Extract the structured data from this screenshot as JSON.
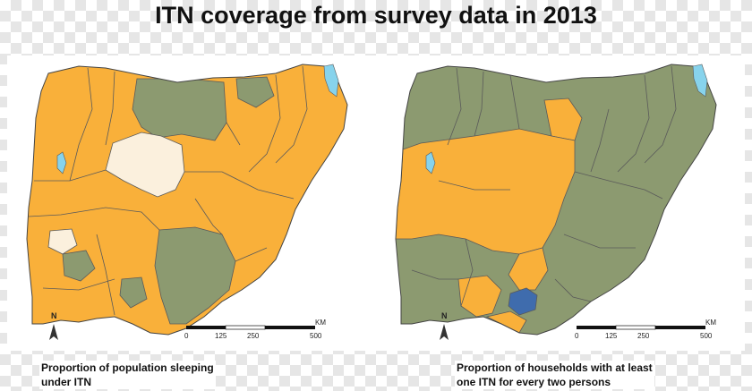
{
  "title": "ITN coverage from survey data in 2013",
  "maps": [
    {
      "caption_line1": "Proportion of population sleeping",
      "caption_line2": "under ITN",
      "north": "N",
      "scale_ticks": [
        "0",
        "125",
        "250",
        "500"
      ],
      "scale_unit": "KM"
    },
    {
      "caption_line1": "Proportion of households with at least",
      "caption_line2": "one ITN for every two persons",
      "north": "N",
      "scale_ticks": [
        "0",
        "125",
        "250",
        "500"
      ],
      "scale_unit": "KM"
    }
  ],
  "colors": {
    "orange": "#f9b03a",
    "olive": "#8c9a70",
    "cream": "#fbf0dd",
    "blue": "#3f6cad",
    "water": "#87d3ec",
    "border": "#555555"
  }
}
